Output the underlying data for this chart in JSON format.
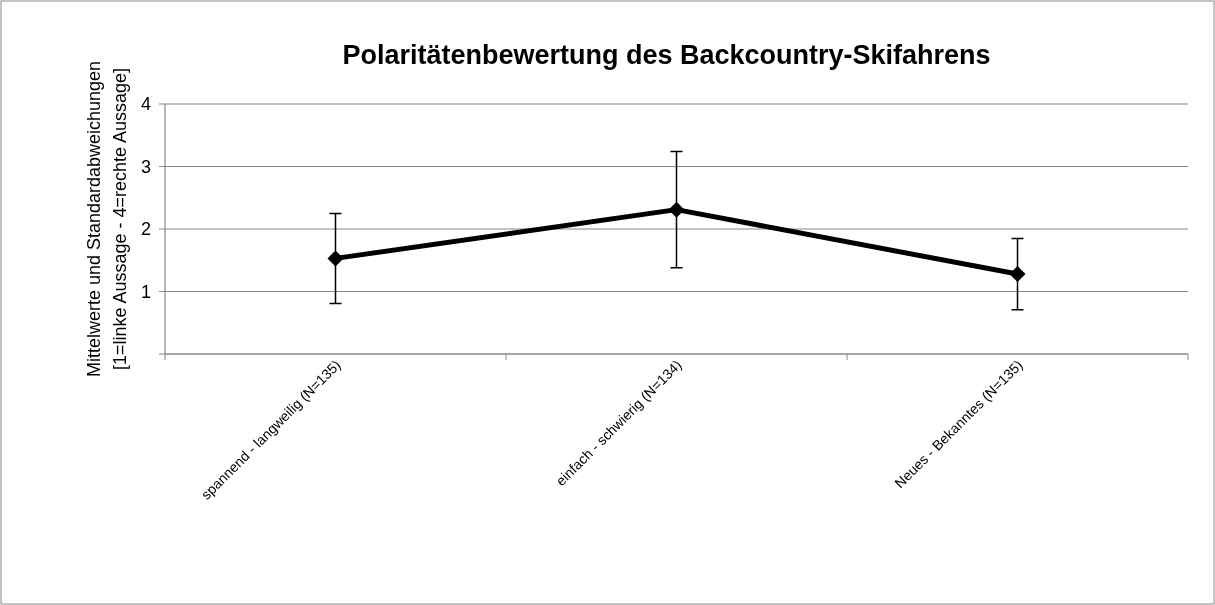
{
  "chart_data": {
    "type": "line",
    "title": "Polaritätenbewertung des Backcountry-Skifahrens",
    "ylabel": "Mittelwerte und Standardabweichungen\n[1=linke Aussage - 4=rechte Aussage]",
    "categories": [
      "spannend - langweilig (N=135)",
      "einfach - schwierig (N=134)",
      "Neues - Bekanntes (N=135)"
    ],
    "series": [
      {
        "color": "#000000",
        "values": [
          1.53,
          2.31,
          1.28
        ],
        "errors": [
          0.72,
          0.93,
          0.57
        ]
      }
    ],
    "ylim": [
      0,
      4
    ],
    "yticks": [
      {
        "value": 0,
        "label": null
      },
      1,
      2,
      3,
      4
    ],
    "grid": "y",
    "marker": "diamond",
    "line_style": "solid"
  }
}
